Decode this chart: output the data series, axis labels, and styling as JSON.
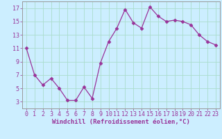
{
  "x": [
    0,
    1,
    2,
    3,
    4,
    5,
    6,
    7,
    8,
    9,
    10,
    11,
    12,
    13,
    14,
    15,
    16,
    17,
    18,
    19,
    20,
    21,
    22,
    23
  ],
  "y": [
    11,
    7,
    5.5,
    6.5,
    5,
    3.2,
    3.2,
    5.2,
    3.5,
    8.8,
    12,
    14,
    16.8,
    14.8,
    14,
    17.2,
    15.8,
    15,
    15.2,
    15,
    14.5,
    13,
    12,
    11.5
  ],
  "line_color": "#993399",
  "marker": "D",
  "marker_size": 2.5,
  "bg_color": "#cceeff",
  "grid_color": "#aaddcc",
  "xlabel": "Windchill (Refroidissement éolien,°C)",
  "xlim": [
    -0.5,
    23.5
  ],
  "ylim": [
    2,
    18
  ],
  "yticks": [
    3,
    5,
    7,
    9,
    11,
    13,
    15,
    17
  ],
  "xticks": [
    0,
    1,
    2,
    3,
    4,
    5,
    6,
    7,
    8,
    9,
    10,
    11,
    12,
    13,
    14,
    15,
    16,
    17,
    18,
    19,
    20,
    21,
    22,
    23
  ],
  "tick_color": "#993399",
  "label_fontsize": 6.5,
  "tick_fontsize": 6.0,
  "spine_color": "#999999"
}
